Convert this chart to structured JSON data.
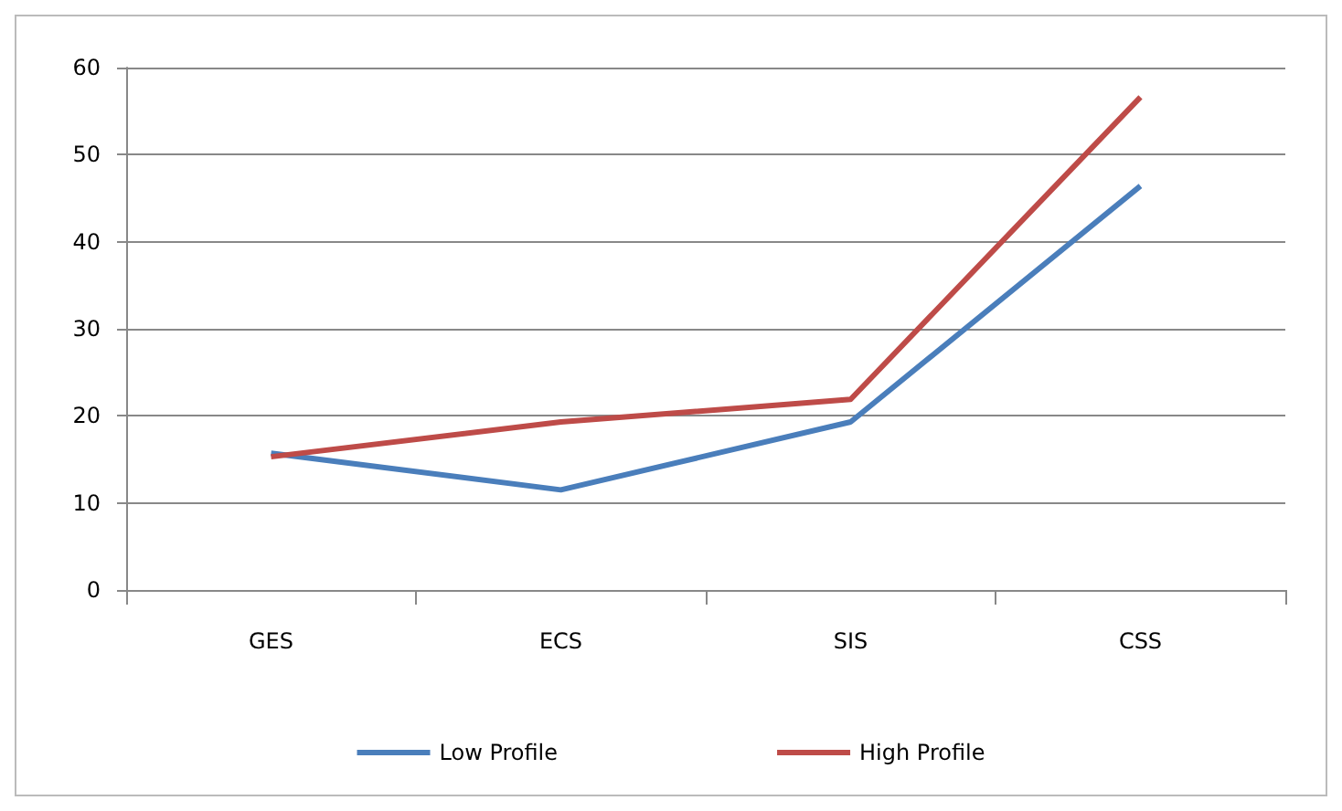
{
  "chart_data": {
    "type": "line",
    "categories": [
      "GES",
      "ECS",
      "SIS",
      "CSS"
    ],
    "series": [
      {
        "name": "Low Profile",
        "color": "#4a7ebb",
        "values": [
          15.7,
          11.5,
          19.3,
          46.4
        ]
      },
      {
        "name": "High Profile",
        "color": "#be4b48",
        "values": [
          15.3,
          19.3,
          21.9,
          56.6
        ]
      }
    ],
    "ylim": [
      0,
      60
    ],
    "yticks": [
      0,
      10,
      20,
      30,
      40,
      50,
      60
    ],
    "grid": "y",
    "legend": "bottom",
    "marker": "none",
    "line_style": "solid"
  }
}
